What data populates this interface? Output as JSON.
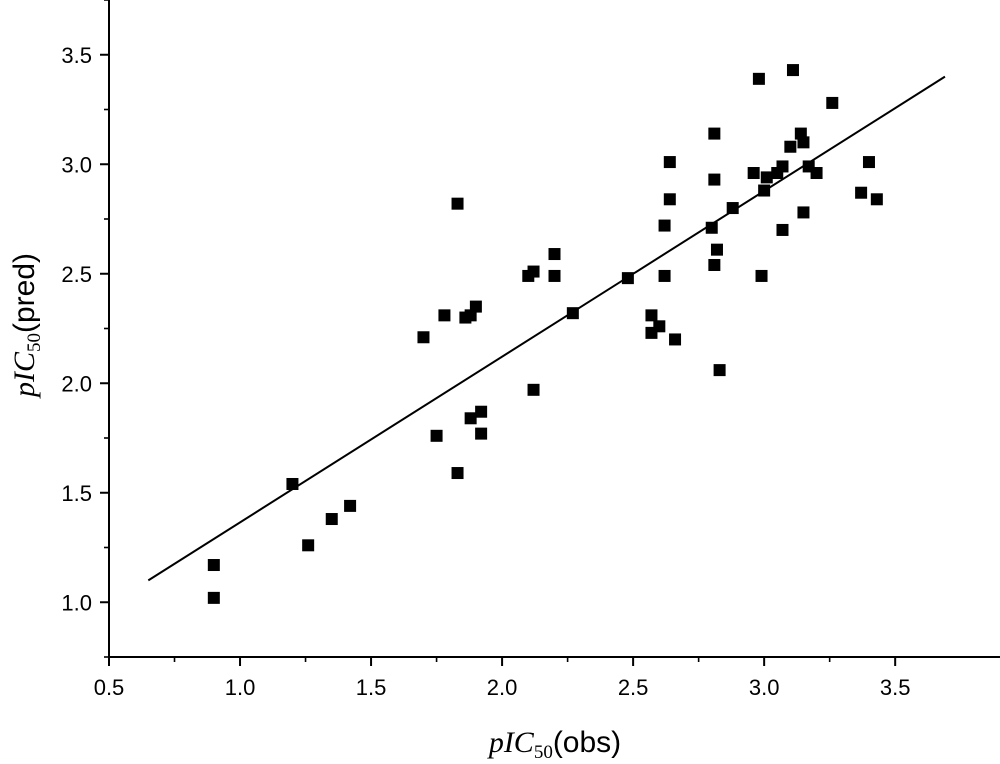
{
  "chart_data": {
    "type": "scatter",
    "xlabel": {
      "italic": "pIC",
      "sub": "50",
      "plain": "(obs)"
    },
    "ylabel": {
      "italic": "pIC",
      "sub": "50",
      "plain": "(pred)"
    },
    "xlim": [
      0.5,
      3.9
    ],
    "ylim": [
      0.75,
      3.75
    ],
    "xticks": [
      "0.5",
      "1.0",
      "1.5",
      "2.0",
      "2.5",
      "3.0",
      "3.5"
    ],
    "yticks": [
      "1.0",
      "1.5",
      "2.0",
      "2.5",
      "3.0",
      "3.5"
    ],
    "grid": false,
    "marker": "square",
    "marker_color": "#000000",
    "points": [
      [
        0.9,
        1.17
      ],
      [
        0.9,
        1.02
      ],
      [
        1.2,
        1.54
      ],
      [
        1.26,
        1.26
      ],
      [
        1.35,
        1.38
      ],
      [
        1.42,
        1.44
      ],
      [
        1.7,
        2.21
      ],
      [
        1.75,
        1.76
      ],
      [
        1.78,
        2.31
      ],
      [
        1.83,
        2.82
      ],
      [
        1.83,
        1.59
      ],
      [
        1.86,
        2.3
      ],
      [
        1.88,
        2.31
      ],
      [
        1.88,
        1.84
      ],
      [
        1.9,
        2.35
      ],
      [
        1.92,
        1.87
      ],
      [
        1.92,
        1.77
      ],
      [
        2.1,
        2.49
      ],
      [
        2.12,
        2.51
      ],
      [
        2.12,
        1.97
      ],
      [
        2.2,
        2.59
      ],
      [
        2.2,
        2.49
      ],
      [
        2.27,
        2.32
      ],
      [
        2.48,
        2.48
      ],
      [
        2.57,
        2.31
      ],
      [
        2.57,
        2.23
      ],
      [
        2.6,
        2.26
      ],
      [
        2.62,
        2.72
      ],
      [
        2.62,
        2.49
      ],
      [
        2.64,
        3.01
      ],
      [
        2.64,
        2.84
      ],
      [
        2.66,
        2.2
      ],
      [
        2.8,
        2.71
      ],
      [
        2.81,
        3.14
      ],
      [
        2.81,
        2.93
      ],
      [
        2.81,
        2.54
      ],
      [
        2.82,
        2.61
      ],
      [
        2.83,
        2.06
      ],
      [
        2.88,
        2.8
      ],
      [
        2.96,
        2.96
      ],
      [
        2.98,
        3.39
      ],
      [
        2.99,
        2.49
      ],
      [
        3.0,
        2.88
      ],
      [
        3.01,
        2.94
      ],
      [
        3.05,
        2.96
      ],
      [
        3.07,
        2.99
      ],
      [
        3.07,
        2.7
      ],
      [
        3.1,
        3.08
      ],
      [
        3.11,
        3.43
      ],
      [
        3.14,
        3.14
      ],
      [
        3.15,
        3.1
      ],
      [
        3.15,
        2.78
      ],
      [
        3.17,
        2.99
      ],
      [
        3.2,
        2.96
      ],
      [
        3.26,
        3.28
      ],
      [
        3.37,
        2.87
      ],
      [
        3.4,
        3.01
      ],
      [
        3.43,
        2.84
      ]
    ],
    "fit_line": {
      "x": [
        0.65,
        3.69
      ],
      "y": [
        1.1,
        3.4
      ]
    }
  }
}
